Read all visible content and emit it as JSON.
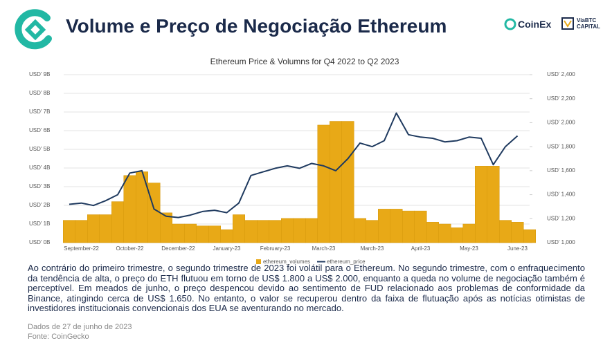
{
  "header": {
    "title": "Volume e Preço de Negociação Ethereum",
    "brands": [
      "CoinEx",
      "ViaBTC",
      "CAPITAL"
    ]
  },
  "chart_data": {
    "type": "combo",
    "title": "Ethereum Price & Volumns for Q4 2022 to Q2 2023",
    "categories": [
      null,
      "September-22",
      null,
      null,
      null,
      "October-22",
      null,
      null,
      null,
      "December-22",
      null,
      null,
      null,
      "January-23",
      null,
      null,
      null,
      "February-23",
      null,
      null,
      null,
      "March-23",
      null,
      null,
      null,
      "March-23",
      null,
      null,
      null,
      "April-23",
      null,
      null,
      null,
      "May-23",
      null,
      null,
      null,
      "June-23",
      null
    ],
    "series": [
      {
        "name": "ethereum_volumes",
        "color": "#e8a917",
        "axis": "y",
        "values": [
          1.2,
          1.2,
          1.5,
          1.5,
          2.2,
          3.6,
          3.8,
          3.2,
          1.6,
          1.0,
          1.0,
          0.9,
          0.9,
          0.7,
          1.5,
          1.2,
          1.2,
          1.2,
          1.3,
          1.3,
          1.3,
          6.3,
          6.5,
          6.5,
          1.3,
          1.2,
          1.8,
          1.8,
          1.7,
          1.7,
          1.1,
          1.0,
          0.8,
          1.0,
          4.1,
          4.1,
          1.2,
          1.1,
          0.7
        ]
      },
      {
        "name": "ethereum_price",
        "color": "#1f3a5f",
        "axis": "y2",
        "values": [
          1320,
          1330,
          1310,
          1350,
          1400,
          1580,
          1600,
          1280,
          1220,
          1210,
          1230,
          1260,
          1270,
          1250,
          1330,
          1560,
          1590,
          1620,
          1640,
          1620,
          1660,
          1640,
          1600,
          1700,
          1830,
          1800,
          1850,
          2080,
          1900,
          1880,
          1870,
          1840,
          1850,
          1880,
          1870,
          1650,
          1800,
          1890,
          null
        ]
      }
    ],
    "ylim": [
      0,
      9
    ],
    "yticks": [
      {
        "value": 0,
        "label": "USD' 0B"
      },
      {
        "value": 1,
        "label": "USD' 1B"
      },
      {
        "value": 2,
        "label": "USD' 2B"
      },
      {
        "value": 3,
        "label": "USD' 3B"
      },
      {
        "value": 4,
        "label": "USD' 4B"
      },
      {
        "value": 5,
        "label": "USD' 5B"
      },
      {
        "value": 6,
        "label": "USD' 6B"
      },
      {
        "value": 7,
        "label": "USD' 7B"
      },
      {
        "value": 8,
        "label": "USD' 8B"
      },
      {
        "value": 9,
        "label": "USD' 9B"
      }
    ],
    "y2lim": [
      1000,
      2400
    ],
    "y2ticks": [
      {
        "value": 1000,
        "label": "USD' 1,000"
      },
      {
        "value": 1200,
        "label": "USD' 1,200"
      },
      {
        "value": 1400,
        "label": "USD' 1,400"
      },
      {
        "value": 1600,
        "label": "USD' 1,600"
      },
      {
        "value": 1800,
        "label": "USD' 1,800"
      },
      {
        "value": 2000,
        "label": "USD' 2,000"
      },
      {
        "value": 2200,
        "label": "USD' 2,200"
      },
      {
        "value": 2400,
        "label": "USD' 2,400"
      }
    ],
    "grid": true,
    "legend": "bottom"
  },
  "body": {
    "paragraph": "Ao contrário do primeiro trimestre, o segundo trimestre de 2023 foi volátil para o Ethereum. No segundo trimestre, com o enfraquecimento da tendência de alta, o preço do ETH flutuou em torno de US$ 1.800 a US$ 2.000, enquanto a queda no volume de negociação também é perceptível. Em meados de junho, o preço despencou devido ao sentimento de FUD relacionado aos problemas de conformidade da Binance, atingindo cerca de US$ 1.650. No entanto, o valor se recuperou dentro da faixa de flutuação após as notícias otimistas de investidores institucionais convencionais dos EUA se aventurando no mercado."
  },
  "footer": {
    "date": "Dados de 27 de junho de 2023",
    "source": "Fonte: CoinGecko"
  }
}
